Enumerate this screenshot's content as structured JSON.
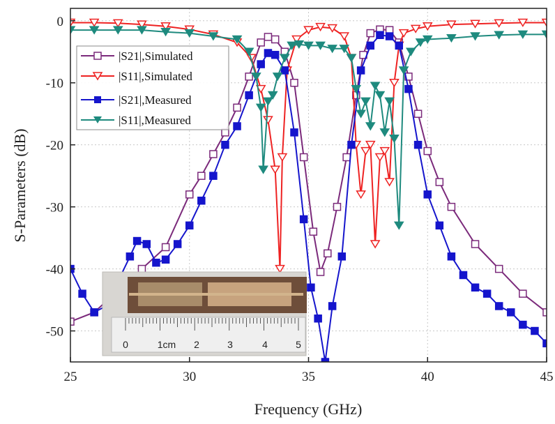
{
  "chart_data": {
    "type": "line",
    "xlabel": "Frequency (GHz)",
    "ylabel": "S-Parameters (dB)",
    "xlim": [
      25,
      45
    ],
    "ylim": [
      -55,
      2
    ],
    "xticks": [
      25,
      30,
      35,
      40,
      45
    ],
    "yticks": [
      0,
      -10,
      -20,
      -30,
      -40,
      -50
    ],
    "grid": true,
    "legend_position": "upper-left",
    "series": [
      {
        "name": "|S21|,Simulated",
        "color": "#7b2a7b",
        "marker": "open-square",
        "x": [
          25,
          26,
          27,
          28,
          29,
          30,
          30.5,
          31,
          31.5,
          32,
          32.5,
          33,
          33.3,
          33.6,
          34,
          34.4,
          34.8,
          35.2,
          35.5,
          35.8,
          36.2,
          36.6,
          37,
          37.3,
          37.6,
          38,
          38.4,
          38.8,
          39.2,
          39.6,
          40,
          40.5,
          41,
          42,
          43,
          44,
          45
        ],
        "y": [
          -48.5,
          -47,
          -43.5,
          -40,
          -36.5,
          -28,
          -25,
          -21.5,
          -18,
          -14,
          -9,
          -3.5,
          -2.6,
          -3,
          -5,
          -10,
          -22,
          -34,
          -40.5,
          -37.5,
          -30,
          -22,
          -12,
          -5.5,
          -2,
          -1.4,
          -1.5,
          -3.5,
          -9,
          -15,
          -21,
          -26,
          -30,
          -36,
          -40,
          -44,
          -47
        ]
      },
      {
        "name": "|S11|,Simulated",
        "color": "#ee2222",
        "marker": "open-triangle-down",
        "x": [
          25,
          26,
          27,
          28,
          29,
          30,
          31,
          32,
          32.6,
          33,
          33.3,
          33.6,
          33.8,
          33.9,
          34.1,
          34.5,
          35,
          35.5,
          36,
          36.5,
          36.8,
          37,
          37.2,
          37.4,
          37.6,
          37.8,
          38,
          38.2,
          38.4,
          38.6,
          38.8,
          39,
          39.5,
          40,
          41,
          42,
          43,
          44,
          45
        ],
        "y": [
          -0.3,
          -0.3,
          -0.4,
          -0.6,
          -0.9,
          -1.4,
          -2.2,
          -3.5,
          -6,
          -11,
          -16,
          -24,
          -40,
          -22,
          -8,
          -3,
          -1.5,
          -1,
          -1.2,
          -2.5,
          -6,
          -20,
          -28,
          -21,
          -20,
          -36,
          -22,
          -21,
          -26,
          -10,
          -4,
          -2,
          -1.3,
          -0.9,
          -0.6,
          -0.5,
          -0.4,
          -0.3,
          -0.3
        ]
      },
      {
        "name": "|S21|,Measured",
        "color": "#1515cc",
        "marker": "filled-square",
        "x": [
          25,
          25.5,
          26,
          26.5,
          27,
          27.5,
          27.8,
          28.2,
          28.6,
          29,
          29.5,
          30,
          30.5,
          31,
          31.5,
          32,
          32.5,
          33,
          33.3,
          33.6,
          34,
          34.4,
          34.8,
          35.1,
          35.4,
          35.7,
          36,
          36.4,
          36.8,
          37.2,
          37.6,
          38,
          38.4,
          38.8,
          39.2,
          39.6,
          40,
          40.5,
          41,
          41.5,
          42,
          42.5,
          43,
          43.5,
          44,
          44.5,
          45
        ],
        "y": [
          -40,
          -44,
          -47,
          -46,
          -42,
          -38,
          -35.5,
          -36,
          -39,
          -38.5,
          -36,
          -33,
          -29,
          -25,
          -20,
          -17,
          -12,
          -7,
          -5.2,
          -5.5,
          -8,
          -18,
          -32,
          -43,
          -48,
          -55,
          -46,
          -38,
          -20,
          -8,
          -4,
          -2.3,
          -2.5,
          -4,
          -11,
          -20,
          -28,
          -33,
          -38,
          -41,
          -43,
          -44,
          -46,
          -47,
          -49,
          -50,
          -52
        ]
      },
      {
        "name": "|S11|,Measured",
        "color": "#1e8a7e",
        "marker": "filled-triangle-down",
        "x": [
          25,
          26,
          27,
          28,
          29,
          30,
          31,
          32,
          32.5,
          32.8,
          33,
          33.1,
          33.3,
          33.5,
          33.7,
          34,
          34.3,
          34.6,
          35,
          35.5,
          36,
          36.5,
          36.8,
          37,
          37.2,
          37.4,
          37.6,
          37.8,
          38,
          38.2,
          38.4,
          38.6,
          38.8,
          39,
          39.3,
          39.7,
          40,
          41,
          42,
          43,
          44,
          45
        ],
        "y": [
          -1.5,
          -1.5,
          -1.5,
          -1.5,
          -1.8,
          -2,
          -2.5,
          -3,
          -5,
          -9,
          -14,
          -24,
          -13,
          -12,
          -9,
          -6,
          -4,
          -3.8,
          -4,
          -4,
          -4.5,
          -4.5,
          -6,
          -11,
          -15,
          -13,
          -17,
          -10.5,
          -12,
          -18,
          -13,
          -19,
          -33,
          -8,
          -5,
          -3.5,
          -3,
          -2.8,
          -2.5,
          -2.3,
          -2.2,
          -2.2
        ]
      }
    ],
    "inset_photo": {
      "ruler_numbers": [
        "0",
        "1cm",
        "2",
        "3",
        "4",
        "5"
      ]
    }
  }
}
